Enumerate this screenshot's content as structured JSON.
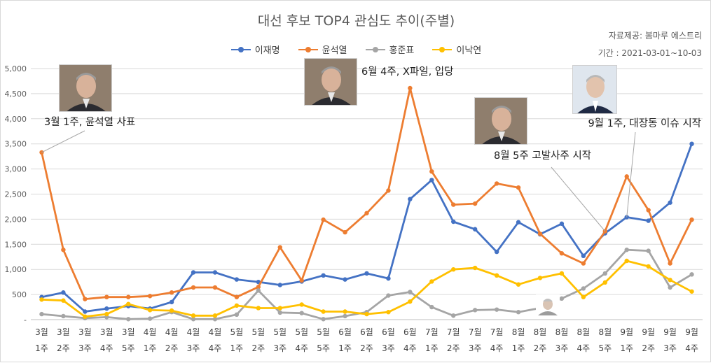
{
  "title": "대선 후보 TOP4 관심도 추이(주별)",
  "source_line": "자료제공: 봄마루 에스트리",
  "period_line": "기간 : 2021-03-01~10-03",
  "colors": {
    "이재명": "#4472C4",
    "윤석열": "#ED7D31",
    "홍준표": "#A5A5A5",
    "이낙연": "#FFC000"
  },
  "chart_data": {
    "type": "line",
    "title": "대선 후보 TOP4 관심도 추이(주별)",
    "xlabel": "",
    "ylabel": "",
    "ylim": [
      0,
      5000
    ],
    "yticks": [
      0,
      500,
      1000,
      1500,
      2000,
      2500,
      3000,
      3500,
      4000,
      4500,
      5000
    ],
    "ytick_labels": [
      "-",
      "500",
      "1,000",
      "1,500",
      "2,000",
      "2,500",
      "3,000",
      "3,500",
      "4,000",
      "4,500",
      "5,000"
    ],
    "grid": true,
    "legend": "top",
    "categories": [
      {
        "month": "3월",
        "week": "1주"
      },
      {
        "month": "3월",
        "week": "2주"
      },
      {
        "month": "3월",
        "week": "3주"
      },
      {
        "month": "3월",
        "week": "4주"
      },
      {
        "month": "3월",
        "week": "5주"
      },
      {
        "month": "4월",
        "week": "1주"
      },
      {
        "month": "4월",
        "week": "2주"
      },
      {
        "month": "4월",
        "week": "3주"
      },
      {
        "month": "4월",
        "week": "4주"
      },
      {
        "month": "5월",
        "week": "1주"
      },
      {
        "month": "5월",
        "week": "2주"
      },
      {
        "month": "5월",
        "week": "3주"
      },
      {
        "month": "5월",
        "week": "4주"
      },
      {
        "month": "5월",
        "week": "5주"
      },
      {
        "month": "6월",
        "week": "1주"
      },
      {
        "month": "6월",
        "week": "2주"
      },
      {
        "month": "6월",
        "week": "3주"
      },
      {
        "month": "6월",
        "week": "4주"
      },
      {
        "month": "7월",
        "week": "1주"
      },
      {
        "month": "7월",
        "week": "2주"
      },
      {
        "month": "7월",
        "week": "3주"
      },
      {
        "month": "7월",
        "week": "4주"
      },
      {
        "month": "8월",
        "week": "1주"
      },
      {
        "month": "8월",
        "week": "2주"
      },
      {
        "month": "8월",
        "week": "3주"
      },
      {
        "month": "8월",
        "week": "4주"
      },
      {
        "month": "8월",
        "week": "5주"
      },
      {
        "month": "9월",
        "week": "1주"
      },
      {
        "month": "9월",
        "week": "2주"
      },
      {
        "month": "9월",
        "week": "3주"
      },
      {
        "month": "9월",
        "week": "4주"
      }
    ],
    "series": [
      {
        "name": "이재명",
        "values": [
          450,
          540,
          160,
          220,
          270,
          220,
          350,
          940,
          940,
          800,
          750,
          690,
          760,
          880,
          800,
          920,
          820,
          2400,
          2780,
          1950,
          1800,
          1350,
          1940,
          1700,
          1910,
          1270,
          1720,
          2040,
          1970,
          2330,
          3500
        ]
      },
      {
        "name": "윤석열",
        "values": [
          3330,
          1390,
          410,
          450,
          450,
          470,
          540,
          640,
          640,
          450,
          650,
          1440,
          780,
          1990,
          1740,
          2120,
          2570,
          4610,
          2950,
          2290,
          2310,
          2710,
          2630,
          1710,
          1320,
          1120,
          1760,
          2850,
          2180,
          1120,
          1990
        ]
      },
      {
        "name": "홍준표",
        "values": [
          110,
          70,
          30,
          50,
          10,
          20,
          150,
          10,
          10,
          100,
          580,
          140,
          130,
          10,
          70,
          150,
          480,
          550,
          250,
          80,
          190,
          200,
          150,
          230,
          420,
          620,
          920,
          1390,
          1370,
          640,
          900
        ]
      },
      {
        "name": "이낙연",
        "values": [
          400,
          380,
          60,
          110,
          310,
          190,
          180,
          80,
          80,
          280,
          230,
          230,
          300,
          160,
          160,
          110,
          150,
          360,
          760,
          1000,
          1030,
          880,
          700,
          830,
          920,
          450,
          740,
          1170,
          1060,
          790,
          560
        ]
      }
    ],
    "annotations": [
      {
        "text": "3월 1주, 윤석열 사표"
      },
      {
        "text": "6월 4주, X파일, 입당"
      },
      {
        "text": "8월 5주 고발사주 시작"
      },
      {
        "text": "9월 1주, 대장동 이슈 시작"
      }
    ]
  }
}
